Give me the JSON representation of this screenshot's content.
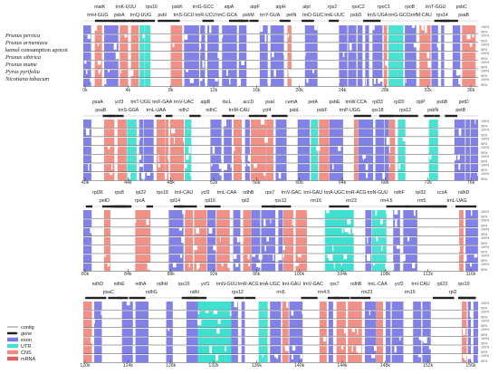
{
  "species": [
    {
      "name": "Prunus persica",
      "italic": true
    },
    {
      "name": "Prunus armeniaca",
      "italic": true
    },
    {
      "name": "kernel consumption apricot",
      "italic": false
    },
    {
      "name": "Prunus sibirica",
      "italic": true
    },
    {
      "name": "Prunus mume",
      "italic": true
    },
    {
      "name": "Pyrus pyrifolia",
      "italic": true
    },
    {
      "name": "Nicotiana tabacum",
      "italic": true
    }
  ],
  "colors": {
    "exon": "#7a7ae6",
    "utr": "#40e0d0",
    "cns": "#f08a80",
    "mrna": "#e06060",
    "gene_arrow": "#222222",
    "contig": "#888888"
  },
  "legend": [
    {
      "label": "contig",
      "icon": "contig-line-icon"
    },
    {
      "label": "gene",
      "icon": "gene-arrow-icon"
    },
    {
      "label": "exon",
      "color": "#7a7ae6"
    },
    {
      "label": "UTR",
      "color": "#40e0d0"
    },
    {
      "label": "CNS",
      "color": "#f08a80"
    },
    {
      "label": "mRNA",
      "color": "#e06060"
    }
  ],
  "percent_labels": [
    "100%",
    "50%"
  ],
  "panels": [
    {
      "ticks": [
        "0k",
        "4k",
        "8k",
        "12k",
        "16k",
        "20k",
        "24k",
        "28k",
        "32k",
        "36k"
      ],
      "genes_top": [
        "matK",
        "trnK-UUU",
        "rps16",
        "psbK",
        "trnG-GCC",
        "atpA",
        "atpF",
        "atpH",
        "atpI",
        "rps2",
        "rpoC2",
        "rpoC1",
        "rpoB",
        "trnT-GGU",
        "psbC"
      ],
      "genes_bot": [
        "trnH-GUG",
        "psbA",
        "trnQ-UUG",
        "psbI",
        "trnS-GCU",
        "trnR-UCU",
        "trnC-GCA",
        "psbM",
        "trnY-GUA",
        "petN",
        "trnD-GUC",
        "trnE-UUC",
        "psbD",
        "trnS-UGA",
        "trnG-GCC",
        "trnfM-CAU",
        "rps14",
        "psaB"
      ]
    },
    {
      "ticks": [
        "40k",
        "44k",
        "48k",
        "52k",
        "56k",
        "60k",
        "64k",
        "68k",
        "72k",
        "76k"
      ],
      "genes_top": [
        "psaA",
        "ycf3",
        "trnT-UGU",
        "trnF-GAA",
        "trnV-UAC",
        "atpB",
        "rbcL",
        "accD",
        "psaI",
        "cemA",
        "petA",
        "psbE",
        "trnW-CCA",
        "rpl33",
        "rpl20",
        "clpP",
        "psbB",
        "petD"
      ],
      "genes_bot": [
        "psaB",
        "trnS-GGA",
        "trnL-UAA",
        "ndhJ",
        "ndhC",
        "trnM-CAU",
        "ycf4",
        "psbL",
        "psbF",
        "trnP-UGG",
        "rps18",
        "rps12",
        "psbN",
        "petB"
      ]
    },
    {
      "ticks": [
        "80k",
        "84k",
        "88k",
        "92k",
        "96k",
        "100k",
        "104k",
        "108k",
        "112k",
        "116k"
      ],
      "genes_top": [
        "rpl36",
        "rps8",
        "rpl22",
        "rps19",
        "trnI-CAU",
        "ycf2",
        "trnL-CAA",
        "ndhB",
        "rps7",
        "trnV-GAC",
        "trnI-GAU",
        "trnA-UGC",
        "trnR-ACG",
        "trnN-GUU",
        "ndhF",
        "rpl32",
        "ccsA",
        "ndhD"
      ],
      "genes_bot": [
        "petD",
        "rpoA",
        "rpl14",
        "rpl16",
        "rpl2",
        "rps12",
        "rrn16",
        "rrn23",
        "rrn4.5",
        "rrn5",
        "trnL-UAG"
      ]
    },
    {
      "ticks": [
        "120k",
        "124k",
        "128k",
        "132k",
        "136k",
        "140k",
        "144k",
        "148k",
        "152k",
        "156k"
      ],
      "genes_top": [
        "ndhD",
        "ndhE",
        "ndhA",
        "ndhH",
        "rps15",
        "ycf1",
        "trnN-GUU",
        "trnR-ACG",
        "trnA-UGC",
        "trnI-GAU",
        "trnV-GAC",
        "rps7",
        "ndhB",
        "trnL-CAA",
        "ycf2",
        "trnI-CAU",
        "rpl23",
        "rps19"
      ],
      "genes_bot": [
        "psaC",
        "ndhG",
        "ndhI",
        "rps12",
        "rrn5",
        "rrn4.5",
        "rrn23",
        "rrn16",
        "rpl2"
      ]
    }
  ]
}
